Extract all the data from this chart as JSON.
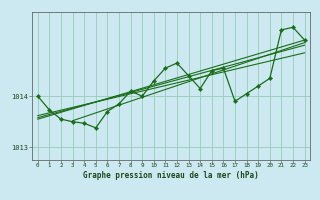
{
  "title": "Graphe pression niveau de la mer (hPa)",
  "bg_color": "#cce8f0",
  "grid_color": "#99ccbb",
  "line_color": "#1a6e1a",
  "marker_color": "#1a6e1a",
  "xlim": [
    -0.5,
    23.5
  ],
  "ylim": [
    1012.75,
    1015.65
  ],
  "yticks": [
    1013,
    1014
  ],
  "xticks": [
    0,
    1,
    2,
    3,
    4,
    5,
    6,
    7,
    8,
    9,
    10,
    11,
    12,
    13,
    14,
    15,
    16,
    17,
    18,
    19,
    20,
    21,
    22,
    23
  ],
  "main_data": [
    [
      0,
      1014.0
    ],
    [
      1,
      1013.73
    ],
    [
      2,
      1013.55
    ],
    [
      3,
      1013.5
    ],
    [
      4,
      1013.47
    ],
    [
      5,
      1013.38
    ],
    [
      6,
      1013.7
    ],
    [
      7,
      1013.85
    ],
    [
      8,
      1014.1
    ],
    [
      9,
      1014.0
    ],
    [
      10,
      1014.3
    ],
    [
      11,
      1014.55
    ],
    [
      12,
      1014.65
    ],
    [
      13,
      1014.4
    ],
    [
      14,
      1014.15
    ],
    [
      15,
      1014.5
    ],
    [
      16,
      1014.55
    ],
    [
      17,
      1013.9
    ],
    [
      18,
      1014.05
    ],
    [
      19,
      1014.2
    ],
    [
      20,
      1014.35
    ],
    [
      21,
      1015.3
    ],
    [
      22,
      1015.35
    ],
    [
      23,
      1015.1
    ]
  ],
  "trend_lines": [
    [
      [
        0,
        1013.62
      ],
      [
        23,
        1014.85
      ]
    ],
    [
      [
        0,
        1013.58
      ],
      [
        23,
        1015.0
      ]
    ],
    [
      [
        0,
        1013.55
      ],
      [
        23,
        1015.1
      ]
    ],
    [
      [
        3,
        1013.52
      ],
      [
        23,
        1015.05
      ]
    ]
  ],
  "figsize": [
    3.2,
    2.0
  ],
  "dpi": 100
}
